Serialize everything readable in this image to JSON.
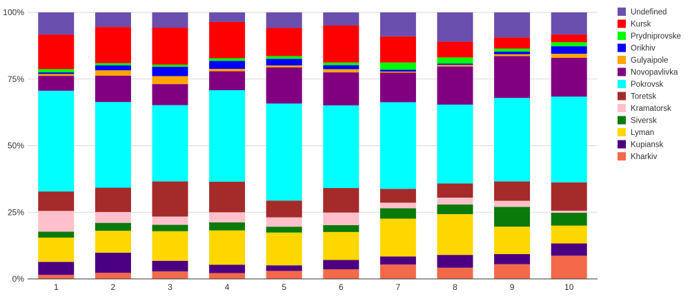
{
  "chart_data": {
    "type": "bar",
    "stacked": true,
    "normalized": true,
    "categories": [
      "1",
      "2",
      "3",
      "4",
      "5",
      "6",
      "7",
      "8",
      "9",
      "10"
    ],
    "yticks": [
      "0%",
      "25%",
      "50%",
      "75%",
      "100%"
    ],
    "ylim": [
      0,
      100
    ],
    "grid": "horizontal",
    "legend_position": "right",
    "series": [
      {
        "name": "Kharkiv",
        "color": "#f4694a",
        "values": [
          1.5,
          2.3,
          2.8,
          2.2,
          3.0,
          3.6,
          5.4,
          4.2,
          5.5,
          8.7
        ]
      },
      {
        "name": "Kupiansk",
        "color": "#4b0082",
        "values": [
          4.9,
          7.6,
          4.0,
          3.1,
          2.1,
          3.5,
          3.0,
          4.8,
          3.8,
          4.6
        ]
      },
      {
        "name": "Lyman",
        "color": "#ffd700",
        "values": [
          9.1,
          8.3,
          11.1,
          12.9,
          12.3,
          10.5,
          14.2,
          15.3,
          10.3,
          6.7
        ]
      },
      {
        "name": "Siversk",
        "color": "#0a7a0a",
        "values": [
          2.2,
          3.0,
          2.4,
          3.0,
          2.2,
          2.6,
          3.9,
          3.6,
          7.4,
          4.8
        ]
      },
      {
        "name": "Kramatorsk",
        "color": "#ffc0cb",
        "values": [
          7.8,
          4.1,
          3.1,
          3.8,
          3.5,
          4.7,
          2.1,
          2.6,
          2.3,
          0.8
        ]
      },
      {
        "name": "Toretsk",
        "color": "#a52a2a",
        "values": [
          7.3,
          9.2,
          13.2,
          11.5,
          6.3,
          9.2,
          5.2,
          5.3,
          7.3,
          10.6
        ]
      },
      {
        "name": "Pokrovsk",
        "color": "#00ffff",
        "values": [
          37.8,
          32.4,
          28.6,
          34.3,
          36.4,
          31.0,
          32.5,
          29.6,
          31.3,
          32.2
        ]
      },
      {
        "name": "Novopavlivka",
        "color": "#800080",
        "values": [
          5.6,
          10.0,
          7.9,
          7.1,
          13.6,
          12.4,
          11.1,
          14.3,
          15.7,
          14.6
        ]
      },
      {
        "name": "Gulyaipole",
        "color": "#ffa500",
        "values": [
          0.7,
          2.0,
          3.0,
          0.9,
          0.7,
          1.2,
          0.4,
          0.6,
          0.7,
          1.5
        ]
      },
      {
        "name": "Orikhiv",
        "color": "#0000ff",
        "values": [
          0.6,
          1.9,
          3.5,
          3.0,
          2.5,
          1.5,
          0.7,
          0.5,
          1.0,
          2.8
        ]
      },
      {
        "name": "Prydniprovske",
        "color": "#00ff00",
        "values": [
          1.2,
          0.8,
          0.8,
          1.0,
          1.0,
          1.0,
          2.7,
          2.3,
          1.1,
          1.5
        ]
      },
      {
        "name": "Kursk",
        "color": "#ff0000",
        "values": [
          13.0,
          13.7,
          13.9,
          13.6,
          10.6,
          13.9,
          9.8,
          5.9,
          4.2,
          2.9
        ]
      },
      {
        "name": "Undefined",
        "color": "#6a4fae",
        "values": [
          8.3,
          5.5,
          5.7,
          3.6,
          5.8,
          4.9,
          9.0,
          11.0,
          9.4,
          8.3
        ]
      }
    ]
  }
}
